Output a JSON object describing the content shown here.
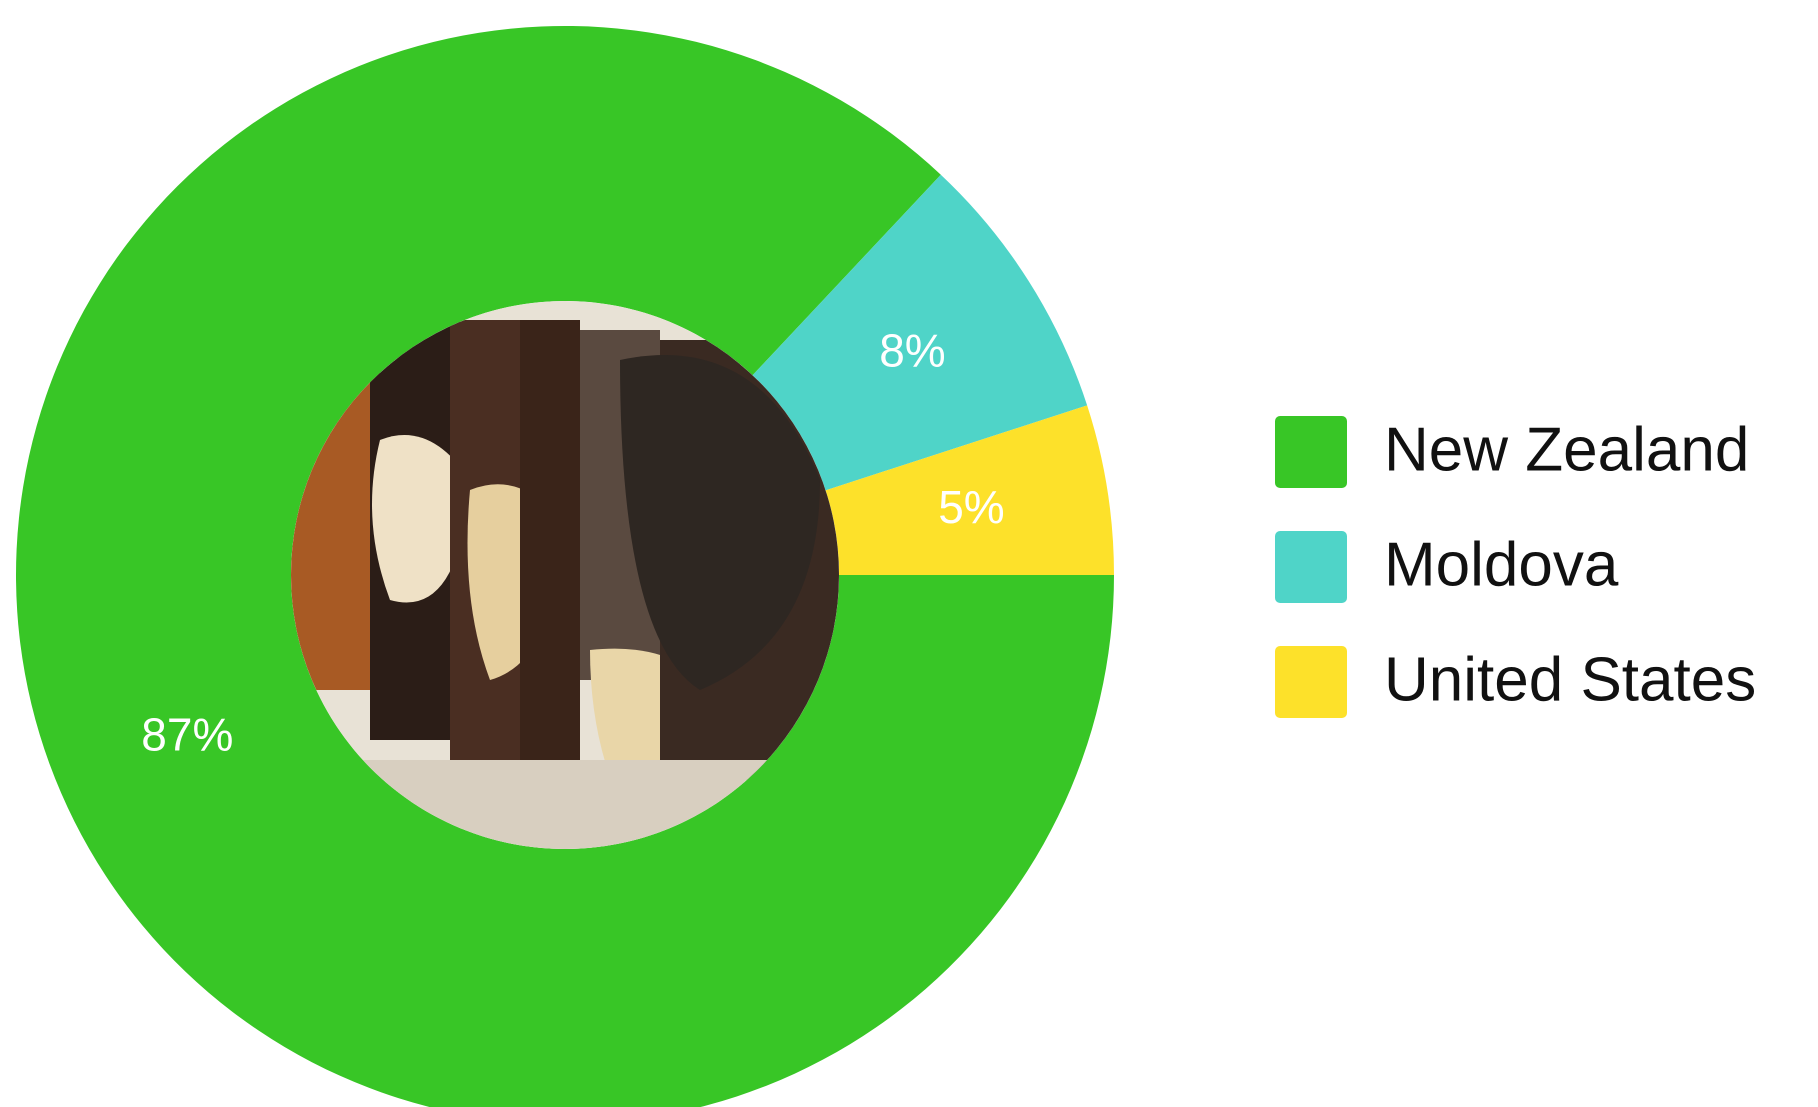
{
  "chart_data": {
    "type": "pie",
    "categories": [
      "New Zealand",
      "Moldova",
      "United States"
    ],
    "values": [
      87,
      8,
      5
    ],
    "value_labels": [
      "87%",
      "8%",
      "5%"
    ],
    "colors": [
      "#38c626",
      "#4fd4c8",
      "#fde12a"
    ],
    "legend": "right"
  }
}
